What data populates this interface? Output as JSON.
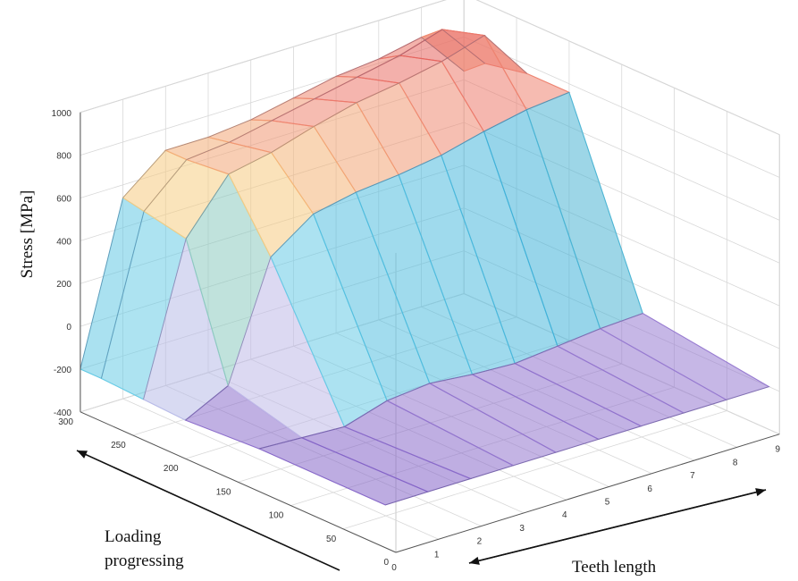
{
  "chart_data": {
    "type": "surface",
    "zlabel": "Stress [MPa]",
    "ylabel_lines": [
      "Loading",
      "progressing"
    ],
    "xlabel": "Teeth length",
    "x_ticks": [
      "0",
      "1",
      "2",
      "3",
      "4",
      "5",
      "6",
      "7",
      "8",
      "9"
    ],
    "y_ticks": [
      "0",
      "50",
      "100",
      "150",
      "200",
      "250",
      "300"
    ],
    "z_ticks": [
      "-400",
      "-200",
      "0",
      "200",
      "400",
      "600",
      "800",
      "1000"
    ],
    "xlim": [
      0,
      9
    ],
    "ylim": [
      0,
      300
    ],
    "zlim": [
      -400,
      1000
    ],
    "grid": true,
    "colormap": [
      "#2e1a87",
      "#7d5cc4",
      "#c9b6e8",
      "#6fd0e8",
      "#3fb0d8",
      "#f4f0a0",
      "#f6c27a",
      "#ee8070",
      "#e05555"
    ],
    "x": [
      0,
      1,
      2,
      3,
      4,
      5,
      6,
      7,
      8,
      9
    ],
    "series": [
      {
        "x": 0,
        "y": 10,
        "values": [
          -200,
          -200,
          -200,
          -200,
          -200,
          -200,
          -200,
          -200,
          -200,
          -200
        ]
      },
      {
        "x": 1,
        "y": 130,
        "values": [
          -200,
          -210,
          -220,
          -160,
          -140,
          -160,
          -170,
          -150,
          -130,
          -120
        ]
      },
      {
        "x": 2,
        "y": 200,
        "values": [
          -220,
          -120,
          420,
          560,
          600,
          620,
          650,
          700,
          740,
          760
        ]
      },
      {
        "x": 3,
        "y": 240,
        "values": [
          -210,
          480,
          720,
          760,
          820,
          870,
          900,
          940,
          1000,
          760
        ]
      },
      {
        "x": 4,
        "y": 280,
        "values": [
          -200,
          520,
          700,
          720,
          760,
          800,
          840,
          880,
          940,
          720
        ]
      },
      {
        "x": 5,
        "y": 300,
        "values": [
          -200,
          540,
          700,
          700,
          720,
          760,
          800,
          820,
          860,
          640
        ]
      }
    ]
  }
}
